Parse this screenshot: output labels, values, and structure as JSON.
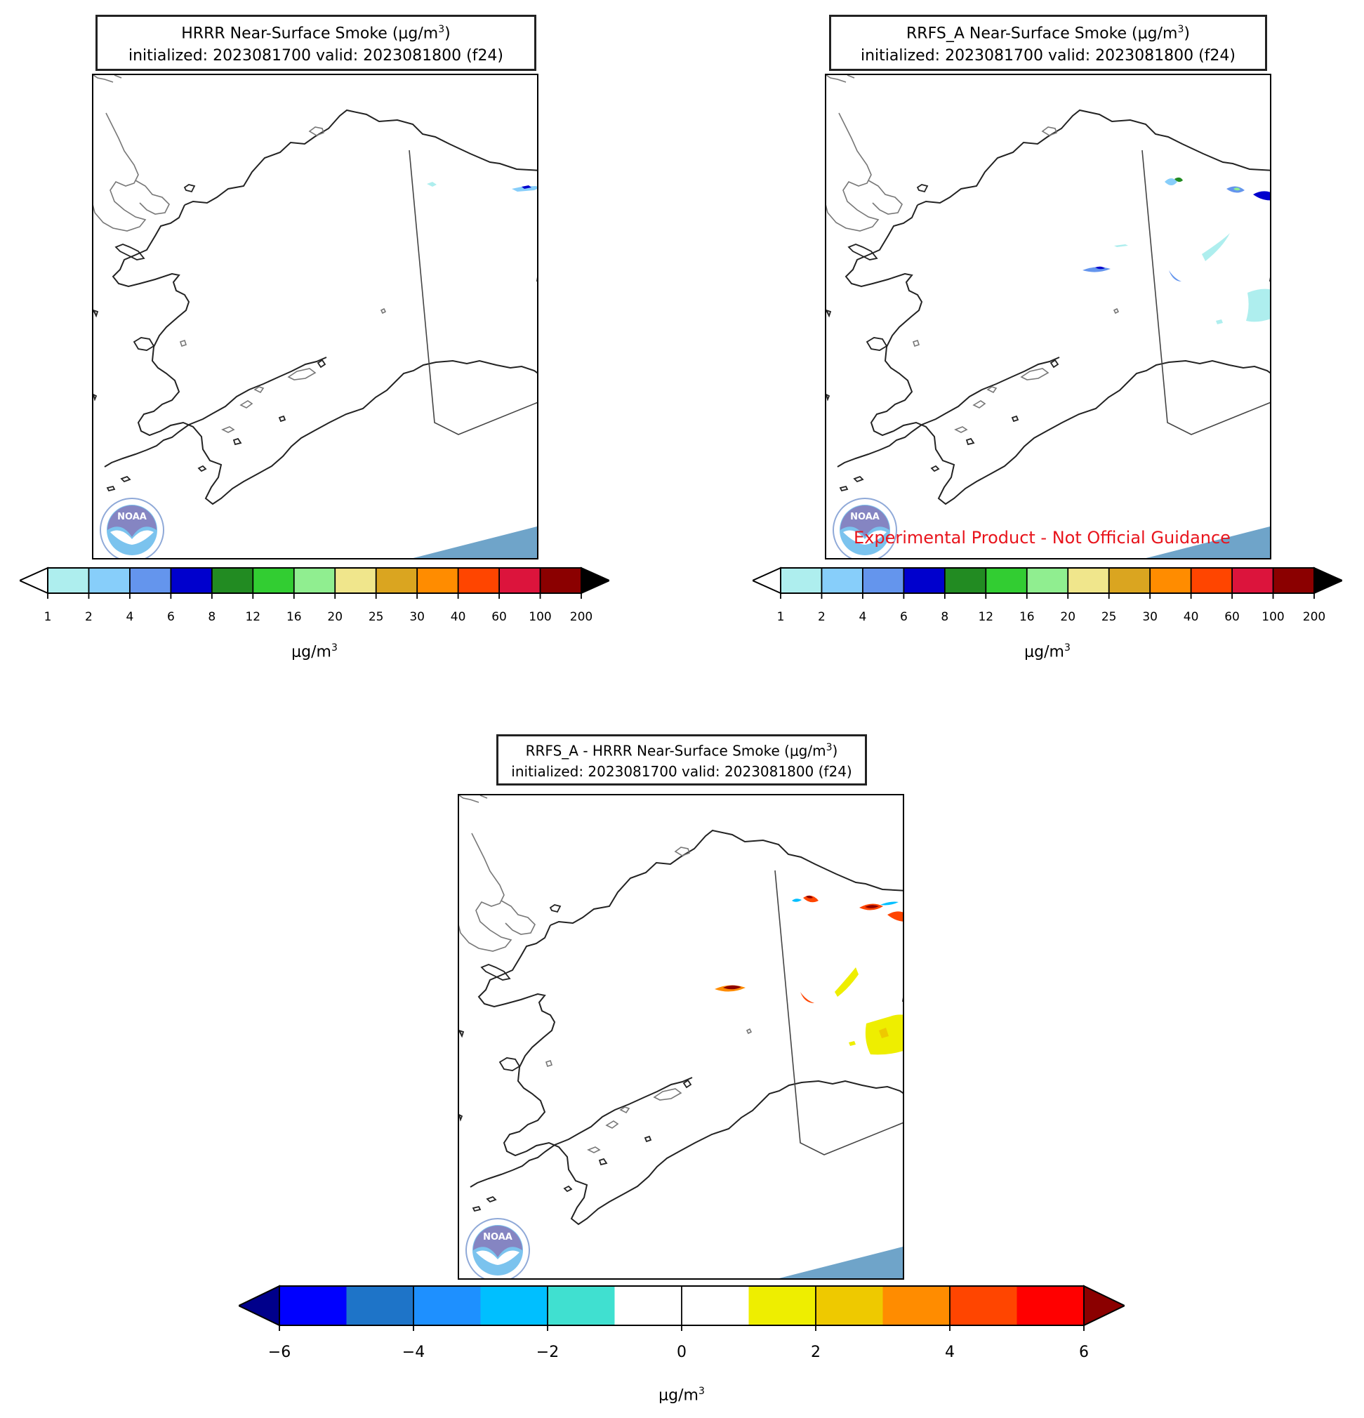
{
  "panels": [
    {
      "id": "hrrr",
      "title_line1": "HRRR Near-Surface Smoke (μg/m",
      "title_sup": "3",
      "title_close": ")",
      "title_line2": "initialized: 2023081700 valid: 2023081800 (f24)",
      "colorbar": "smoke"
    },
    {
      "id": "rrfs",
      "title_line1": "RRFS_A Near-Surface Smoke (μg/m",
      "title_sup": "3",
      "title_close": ")",
      "title_line2": "initialized: 2023081700 valid: 2023081800 (f24)",
      "watermark": "Experimental Product - Not Official Guidance",
      "colorbar": "smoke"
    },
    {
      "id": "diff",
      "title_line1": "RRFS_A - HRRR Near-Surface Smoke (μg/m",
      "title_sup": "3",
      "title_close": ")",
      "title_line2": "initialized: 2023081700 valid: 2023081800 (f24)",
      "colorbar": "diff"
    }
  ],
  "colorbars": {
    "smoke": {
      "ticks": [
        "1",
        "2",
        "4",
        "6",
        "8",
        "12",
        "16",
        "20",
        "25",
        "30",
        "40",
        "60",
        "100",
        "200"
      ],
      "colors": [
        "#aeeeee",
        "#87cefa",
        "#6495ed",
        "#0000cd",
        "#228b22",
        "#32cd32",
        "#90ee90",
        "#f0e68c",
        "#daa520",
        "#ff8c00",
        "#ff4500",
        "#dc143c",
        "#8b0000"
      ],
      "under_color": "#ffffff",
      "over_color": "#000000",
      "unit": "μg/m",
      "unit_sup": "3"
    },
    "diff": {
      "ticks": [
        "−6",
        "−4",
        "−2",
        "0",
        "2",
        "4",
        "6"
      ],
      "tick_values": [
        -6,
        -4,
        -2,
        0,
        2,
        4,
        6
      ],
      "colors": [
        "#0000ff",
        "#1e74c8",
        "#1e90ff",
        "#00bfff",
        "#40e0d0",
        "#ffffff",
        "#ffffff",
        "#eeee00",
        "#eec900",
        "#ff8c00",
        "#ff4500",
        "#ff0000"
      ],
      "under_color": "#00008b",
      "over_color": "#8b0000",
      "unit": "μg/m",
      "unit_sup": "3"
    }
  },
  "logo_text": "NOAA"
}
